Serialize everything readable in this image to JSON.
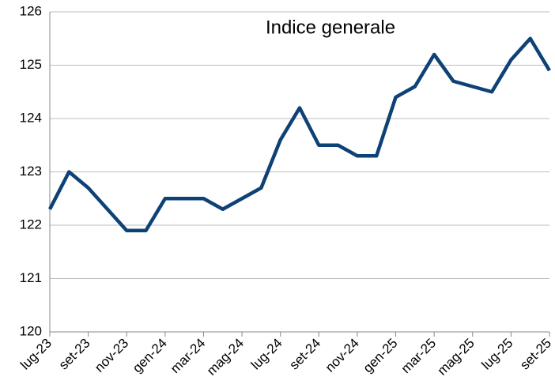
{
  "chart_data": {
    "type": "line",
    "title": "Indice generale",
    "categories": [
      "lug-23",
      null,
      "set-23",
      null,
      "nov-23",
      null,
      "gen-24",
      null,
      "mar-24",
      null,
      "mag-24",
      null,
      "lug-24",
      null,
      "set-24",
      null,
      "nov-24",
      null,
      "gen-25",
      null,
      "mar-25",
      null,
      "mag-25",
      null,
      "lug-25",
      null,
      "set-25"
    ],
    "series": [
      {
        "color": "#0e4176",
        "values": [
          122.3,
          123.0,
          122.7,
          122.3,
          121.9,
          121.9,
          122.5,
          122.5,
          122.5,
          122.3,
          122.5,
          122.7,
          123.6,
          124.2,
          123.5,
          123.5,
          123.3,
          123.3,
          124.4,
          124.6,
          125.2,
          124.7,
          124.6,
          124.5,
          125.1,
          125.5,
          124.9
        ]
      }
    ],
    "ylim": [
      120,
      126
    ],
    "yticks": [
      120,
      121,
      122,
      123,
      124,
      125,
      126
    ],
    "grid": true
  }
}
